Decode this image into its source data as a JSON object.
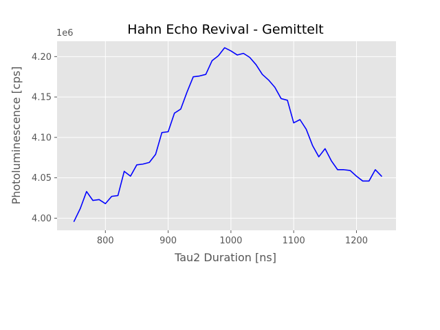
{
  "chart_data": {
    "type": "line",
    "title": "Hahn Echo Revival - Gemittelt",
    "xlabel": "Tau2 Duration [ns]",
    "ylabel": "Photoluminescence [cps]",
    "y_offset_label": "1e6",
    "xlim": [
      723,
      1263
    ],
    "ylim": [
      3.985,
      4.219
    ],
    "x_ticks": [
      800,
      900,
      1000,
      1100,
      1200
    ],
    "y_ticks": [
      4.0,
      4.05,
      4.1,
      4.15,
      4.2
    ],
    "x_tick_labels": [
      "800",
      "900",
      "1000",
      "1100",
      "1200"
    ],
    "y_tick_labels": [
      "4.00",
      "4.05",
      "4.10",
      "4.15",
      "4.20"
    ],
    "grid": true,
    "style": "ggplot",
    "colors": {
      "line": "#0000ff",
      "plot_bg": "#e5e5e5",
      "grid": "#ffffff"
    },
    "series": [
      {
        "x": [
          750,
          760,
          770,
          780,
          790,
          800,
          810,
          820,
          830,
          840,
          850,
          860,
          870,
          880,
          890,
          900,
          910,
          920,
          930,
          940,
          950,
          960,
          970,
          980,
          990,
          1000,
          1010,
          1020,
          1030,
          1040,
          1050,
          1060,
          1070,
          1080,
          1090,
          1100,
          1110,
          1120,
          1130,
          1140,
          1150,
          1160,
          1170,
          1180,
          1190,
          1200,
          1210,
          1220,
          1230,
          1240
        ],
        "y": [
          3.996,
          4.012,
          4.033,
          4.022,
          4.023,
          4.018,
          4.027,
          4.028,
          4.058,
          4.052,
          4.066,
          4.067,
          4.069,
          4.079,
          4.106,
          4.107,
          4.13,
          4.135,
          4.156,
          4.175,
          4.176,
          4.178,
          4.195,
          4.201,
          4.211,
          4.207,
          4.202,
          4.204,
          4.199,
          4.19,
          4.178,
          4.171,
          4.162,
          4.148,
          4.146,
          4.118,
          4.122,
          4.11,
          4.09,
          4.076,
          4.086,
          4.071,
          4.06,
          4.06,
          4.059,
          4.052,
          4.046,
          4.046,
          4.06,
          4.052
        ]
      }
    ]
  }
}
